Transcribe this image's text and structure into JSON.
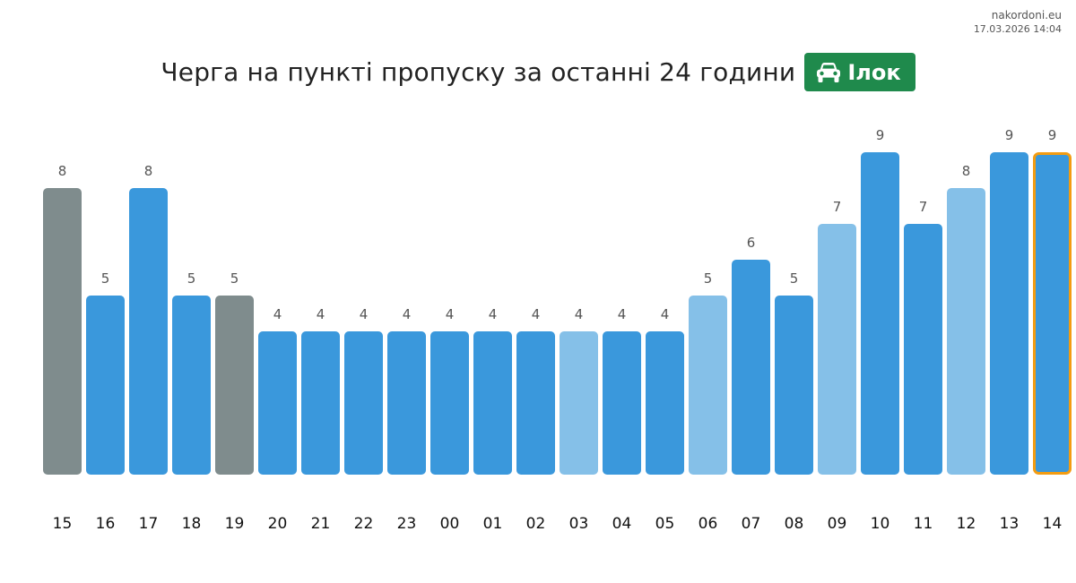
{
  "site": {
    "name": "nakordoni.eu",
    "timestamp": "17.03.2026 14:04"
  },
  "header": {
    "title": "Черга на пункті пропуску за останні 24 години",
    "checkpoint": "Ілок",
    "badge_icon": "car-icon"
  },
  "colors": {
    "bar_default": "#3a98dc",
    "bar_light": "#85c0e8",
    "bar_gray": "#7f8c8d",
    "highlight_border": "#f39c12",
    "badge": "#1f8a4c",
    "value_label": "#555555",
    "tick_label": "#111111"
  },
  "chart_data": {
    "type": "bar",
    "title": "",
    "xlabel": "",
    "ylabel": "",
    "ylim": [
      0,
      9
    ],
    "grid": false,
    "legend": "none",
    "categories": [
      "15",
      "16",
      "17",
      "18",
      "19",
      "20",
      "21",
      "22",
      "23",
      "00",
      "01",
      "02",
      "03",
      "04",
      "05",
      "06",
      "07",
      "08",
      "09",
      "10",
      "11",
      "12",
      "13",
      "14"
    ],
    "values": [
      8,
      5,
      8,
      5,
      5,
      4,
      4,
      4,
      4,
      4,
      4,
      4,
      4,
      4,
      4,
      5,
      6,
      5,
      7,
      9,
      7,
      8,
      9,
      9
    ],
    "bar_styles": [
      "gray",
      "default",
      "default",
      "default",
      "gray",
      "default",
      "default",
      "default",
      "default",
      "default",
      "default",
      "default",
      "light",
      "default",
      "default",
      "light",
      "default",
      "default",
      "light",
      "default",
      "default",
      "light",
      "default",
      "highlight"
    ]
  }
}
